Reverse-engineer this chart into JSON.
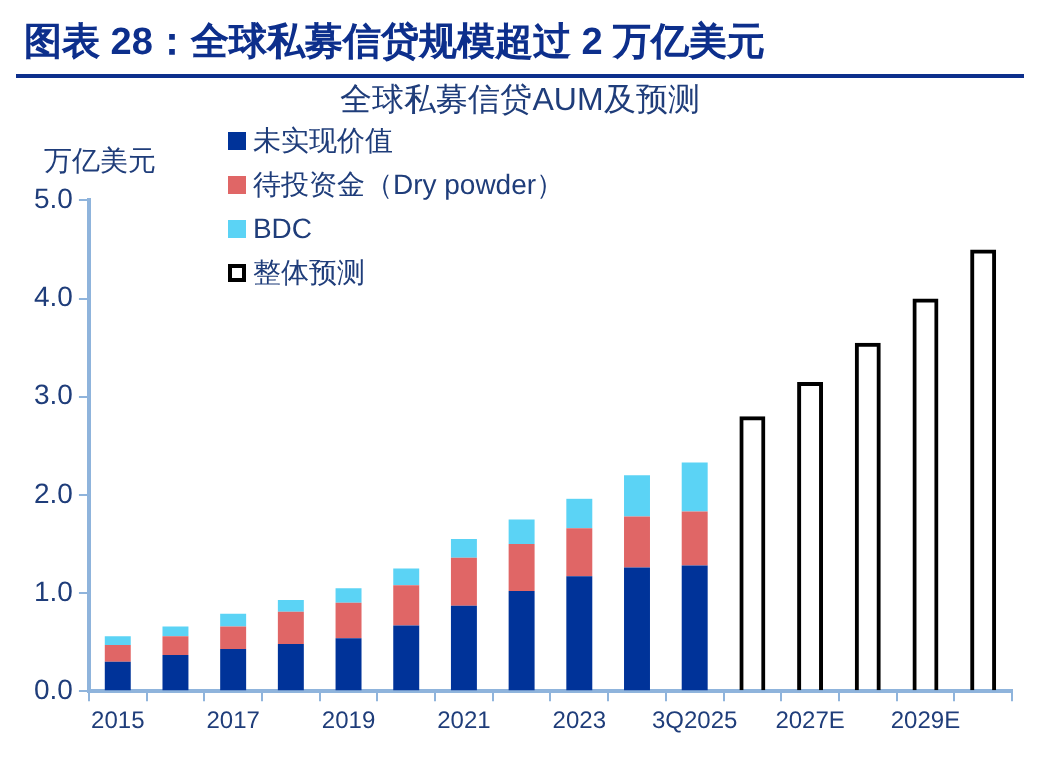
{
  "chart_data": {
    "type": "bar",
    "title": "图表 28：全球私募信贷规模超过 2 万亿美元",
    "subtitle": "全球私募信贷AUM及预测",
    "ylabel": "万亿美元",
    "categories": [
      "2015",
      null,
      "2017",
      null,
      "2019",
      null,
      "2021",
      null,
      "2023",
      null,
      "3Q2025",
      null,
      "2027E",
      null,
      "2029E",
      null
    ],
    "series": [
      {
        "name": "未实现价值",
        "color": "#003399",
        "values": [
          0.3,
          0.37,
          0.43,
          0.48,
          0.54,
          0.67,
          0.87,
          1.02,
          1.17,
          1.26,
          1.28,
          null,
          null,
          null,
          null,
          null
        ]
      },
      {
        "name": "待投资金（Dry powder）",
        "color": "#e06666",
        "values": [
          0.17,
          0.19,
          0.23,
          0.33,
          0.36,
          0.41,
          0.49,
          0.48,
          0.49,
          0.52,
          0.55,
          null,
          null,
          null,
          null,
          null
        ]
      },
      {
        "name": "BDC",
        "color": "#5bd3f5",
        "values": [
          0.09,
          0.1,
          0.13,
          0.12,
          0.15,
          0.17,
          0.19,
          0.25,
          0.3,
          0.42,
          0.5,
          null,
          null,
          null,
          null,
          null
        ]
      },
      {
        "name": "整体预测",
        "color": "#000000",
        "values": [
          null,
          null,
          null,
          null,
          null,
          null,
          null,
          null,
          null,
          null,
          null,
          2.8,
          3.15,
          3.55,
          4.0,
          4.5
        ]
      }
    ],
    "stacked": true,
    "ylim": [
      0,
      5
    ],
    "yticks": [
      {
        "value": 0,
        "label": "0.0"
      },
      {
        "value": 1,
        "label": "1.0"
      },
      {
        "value": 2,
        "label": "2.0"
      },
      {
        "value": 3,
        "label": "3.0"
      },
      {
        "value": 4,
        "label": "4.0"
      },
      {
        "value": 5,
        "label": "5.0"
      }
    ],
    "grid": false,
    "legend": "top left"
  }
}
